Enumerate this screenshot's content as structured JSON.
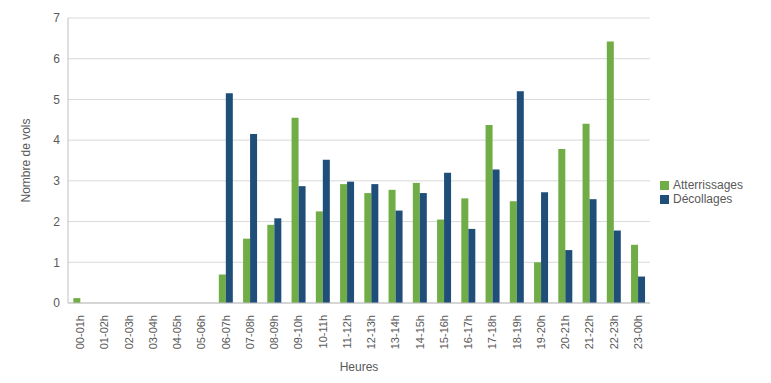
{
  "chart_data": {
    "type": "bar",
    "x_label": "Heures",
    "y_label": "Nombre de vols",
    "categories": [
      "00-01h",
      "01-02h",
      "02-03h",
      "03-04h",
      "04-05h",
      "05-06h",
      "06-07h",
      "07-08h",
      "08-09h",
      "09-10h",
      "10-11h",
      "11-12h",
      "12-13h",
      "13-14h",
      "14-15h",
      "15-16h",
      "16-17h",
      "17-18h",
      "18-19h",
      "19-20h",
      "20-21h",
      "21-22h",
      "22-23h",
      "23-00h"
    ],
    "series": [
      {
        "name": "Atterrissages",
        "color": "#70ad47",
        "values": [
          0.12,
          0,
          0,
          0,
          0,
          0,
          0.7,
          1.58,
          1.92,
          4.55,
          2.25,
          2.92,
          2.7,
          2.78,
          2.95,
          2.05,
          2.57,
          4.37,
          2.5,
          1.0,
          3.78,
          4.4,
          6.42,
          1.43
        ]
      },
      {
        "name": "Décollages",
        "color": "#1f4e79",
        "values": [
          0,
          0,
          0,
          0,
          0,
          0,
          5.15,
          4.15,
          2.08,
          2.87,
          3.52,
          2.98,
          2.92,
          2.27,
          2.7,
          3.2,
          1.82,
          3.28,
          5.2,
          2.72,
          1.3,
          2.55,
          1.78,
          0.65
        ]
      }
    ],
    "ylim": [
      0,
      7
    ],
    "yticks": [
      0,
      1,
      2,
      3,
      4,
      5,
      6,
      7
    ],
    "grid": true,
    "legend": "right"
  }
}
